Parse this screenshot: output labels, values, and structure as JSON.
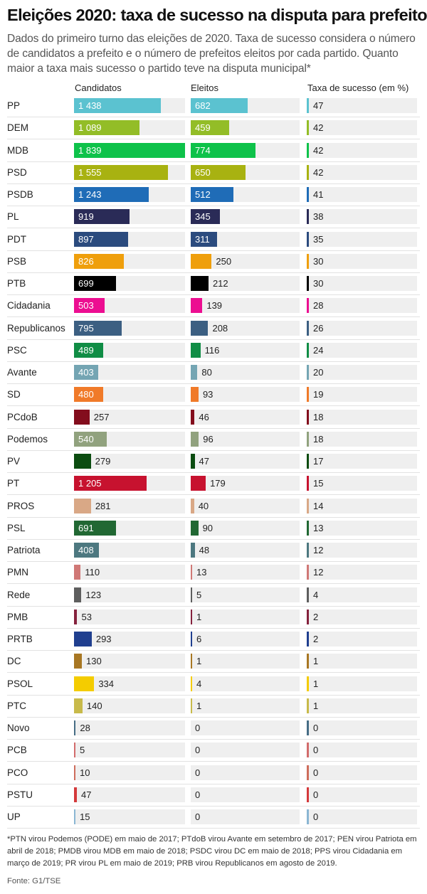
{
  "title": "Eleições 2020: taxa de sucesso na disputa para prefeito",
  "subtitle": "Dados do primeiro turno das eleições de 2020. Taxa de sucesso considera o número de candidatos a prefeito e o número de prefeitos eleitos por cada partido. Quanto maior a taxa mais sucesso o partido teve na disputa municipal*",
  "columns": {
    "candidatos": "Candidatos",
    "eleitos": "Eleitos",
    "taxa": "Taxa de sucesso (em %)"
  },
  "chart_data": {
    "type": "bar",
    "categories": [
      "PP",
      "DEM",
      "MDB",
      "PSD",
      "PSDB",
      "PL",
      "PDT",
      "PSB",
      "PTB",
      "Cidadania",
      "Republicanos",
      "PSC",
      "Avante",
      "SD",
      "PCdoB",
      "Podemos",
      "PV",
      "PT",
      "PROS",
      "PSL",
      "Patriota",
      "PMN",
      "Rede",
      "PMB",
      "PRTB",
      "DC",
      "PSOL",
      "PTC",
      "Novo",
      "PCB",
      "PCO",
      "PSTU",
      "UP"
    ],
    "labels": {
      "candidatos": [
        "1 438",
        "1 089",
        "1 839",
        "1 555",
        "1 243",
        "919",
        "897",
        "826",
        "699",
        "503",
        "795",
        "489",
        "403",
        "480",
        "257",
        "540",
        "279",
        "1 205",
        "281",
        "691",
        "408",
        "110",
        "123",
        "53",
        "293",
        "130",
        "334",
        "140",
        "28",
        "5",
        "10",
        "47",
        "15"
      ],
      "eleitos": [
        "682",
        "459",
        "774",
        "650",
        "512",
        "345",
        "311",
        "250",
        "212",
        "139",
        "208",
        "116",
        "80",
        "93",
        "46",
        "96",
        "47",
        "179",
        "40",
        "90",
        "48",
        "13",
        "5",
        "1",
        "6",
        "1",
        "4",
        "1",
        "0",
        "0",
        "0",
        "0",
        "0"
      ],
      "taxa": [
        "47",
        "42",
        "42",
        "42",
        "41",
        "38",
        "35",
        "30",
        "30",
        "28",
        "26",
        "24",
        "20",
        "19",
        "18",
        "18",
        "17",
        "15",
        "14",
        "13",
        "12",
        "12",
        "4",
        "2",
        "2",
        "1",
        "1",
        "1",
        "0",
        "0",
        "0",
        "0",
        "0"
      ]
    },
    "series": [
      {
        "name": "Candidatos",
        "values": [
          1438,
          1089,
          1839,
          1555,
          1243,
          919,
          897,
          826,
          699,
          503,
          795,
          489,
          403,
          480,
          257,
          540,
          279,
          1205,
          281,
          691,
          408,
          110,
          123,
          53,
          293,
          130,
          334,
          140,
          28,
          5,
          10,
          47,
          15
        ]
      },
      {
        "name": "Eleitos",
        "values": [
          682,
          459,
          774,
          650,
          512,
          345,
          311,
          250,
          212,
          139,
          208,
          116,
          80,
          93,
          46,
          96,
          47,
          179,
          40,
          90,
          48,
          13,
          5,
          1,
          6,
          1,
          4,
          1,
          0,
          0,
          0,
          0,
          0
        ]
      },
      {
        "name": "Taxa de sucesso (em %)",
        "values": [
          47,
          42,
          42,
          42,
          41,
          38,
          35,
          30,
          30,
          28,
          26,
          24,
          20,
          19,
          18,
          18,
          17,
          15,
          14,
          13,
          12,
          12,
          4,
          2,
          2,
          1,
          1,
          1,
          0,
          0,
          0,
          0,
          0
        ]
      }
    ],
    "colors": [
      "#5bc2d0",
      "#93bd27",
      "#0ec24a",
      "#a8b211",
      "#1f6cb7",
      "#2a2b57",
      "#2b4b7e",
      "#ef9f0c",
      "#000000",
      "#ec0e91",
      "#3c5f82",
      "#108d45",
      "#74a5b3",
      "#f07a29",
      "#830d1d",
      "#91a27e",
      "#0b4c10",
      "#c7122f",
      "#d9a886",
      "#216833",
      "#4d7880",
      "#d07876",
      "#5e5e5e",
      "#85223d",
      "#203f8f",
      "#a87723",
      "#f4cc00",
      "#c8ba4a",
      "#466d85",
      "#d26c6c",
      "#ce6d5c",
      "#d4393b",
      "#8bb6d3"
    ],
    "xlim": {
      "candidatos": [
        0,
        1839
      ],
      "eleitos": [
        0,
        1300
      ],
      "taxa": [
        0,
        1300
      ]
    },
    "legend": "none",
    "grid": false
  },
  "footnote": "*PTN virou Podemos (PODE) em maio de 2017; PTdoB virou Avante em setembro de 2017; PEN virou Patriota em abril de 2018; PMDB virou MDB em maio de 2018; PSDC virou DC em maio de 2018; PPS virou Cidadania em março de 2019; PR virou PL em maio de 2019; PRB virou Republicanos em agosto de 2019.",
  "source": "Fonte: G1/TSE"
}
